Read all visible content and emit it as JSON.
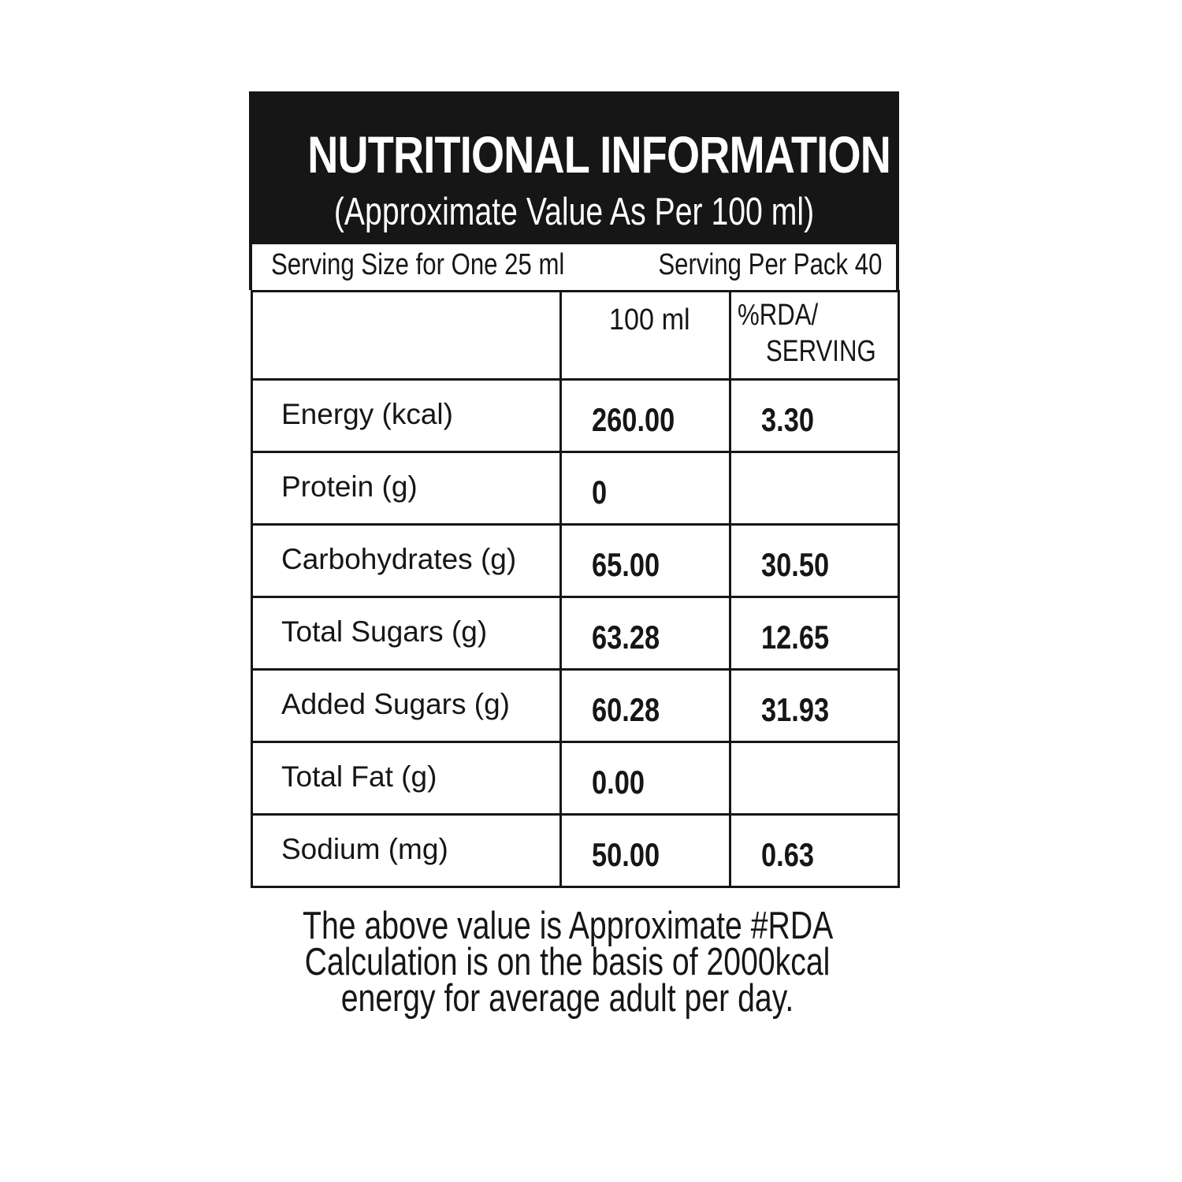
{
  "header": {
    "title": "NUTRITIONAL INFORMATION",
    "subtitle": "(Approximate Value As Per 100 ml)"
  },
  "serving": {
    "size": "Serving Size for One 25 ml",
    "per_pack": "Serving Per Pack 40"
  },
  "table": {
    "columns": {
      "per_100ml": "100 ml",
      "rda_line1": "%RDA/",
      "rda_line2": "SERVING"
    },
    "rows": [
      {
        "nutrient": "Energy (kcal)",
        "per_100ml": "260.00",
        "rda": "3.30"
      },
      {
        "nutrient": "Protein (g)",
        "per_100ml": "0",
        "rda": ""
      },
      {
        "nutrient": "Carbohydrates (g)",
        "per_100ml": "65.00",
        "rda": "30.50"
      },
      {
        "nutrient": "Total Sugars (g)",
        "per_100ml": "63.28",
        "rda": "12.65"
      },
      {
        "nutrient": "Added Sugars (g)",
        "per_100ml": "60.28",
        "rda": "31.93"
      },
      {
        "nutrient": "Total Fat (g)",
        "per_100ml": "0.00",
        "rda": ""
      },
      {
        "nutrient": "Sodium (mg)",
        "per_100ml": "50.00",
        "rda": "0.63"
      }
    ]
  },
  "footnote": {
    "line1": "The above value is Approximate #RDA",
    "line2": "Calculation is on the basis of 2000kcal",
    "line3": "energy for average adult per day."
  },
  "colors": {
    "ink": "#161616",
    "background": "#ffffff"
  }
}
